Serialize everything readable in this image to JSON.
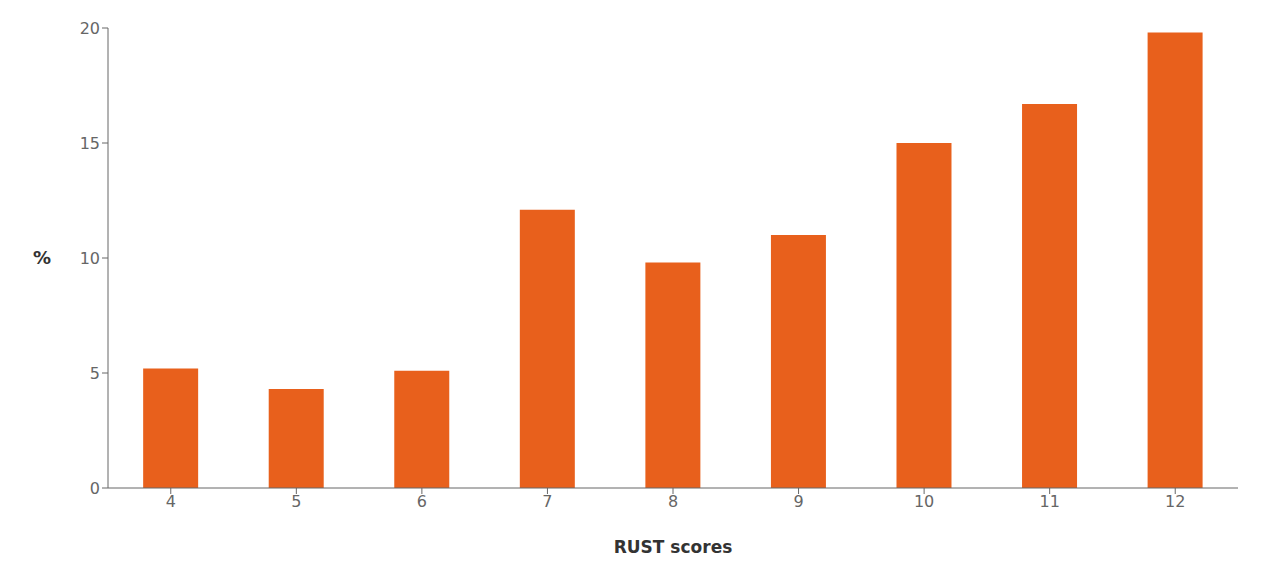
{
  "chart_data": {
    "type": "bar",
    "categories": [
      "4",
      "5",
      "6",
      "7",
      "8",
      "9",
      "10",
      "11",
      "12"
    ],
    "values": [
      5.2,
      4.3,
      5.1,
      12.1,
      9.8,
      11.0,
      15.0,
      16.7,
      19.8
    ],
    "color": "#E8601C",
    "xlabel": "RUST scores",
    "ylabel": "%",
    "ylim": [
      0,
      20
    ],
    "yticks": [
      0,
      5,
      10,
      15,
      20
    ],
    "grid": false
  }
}
